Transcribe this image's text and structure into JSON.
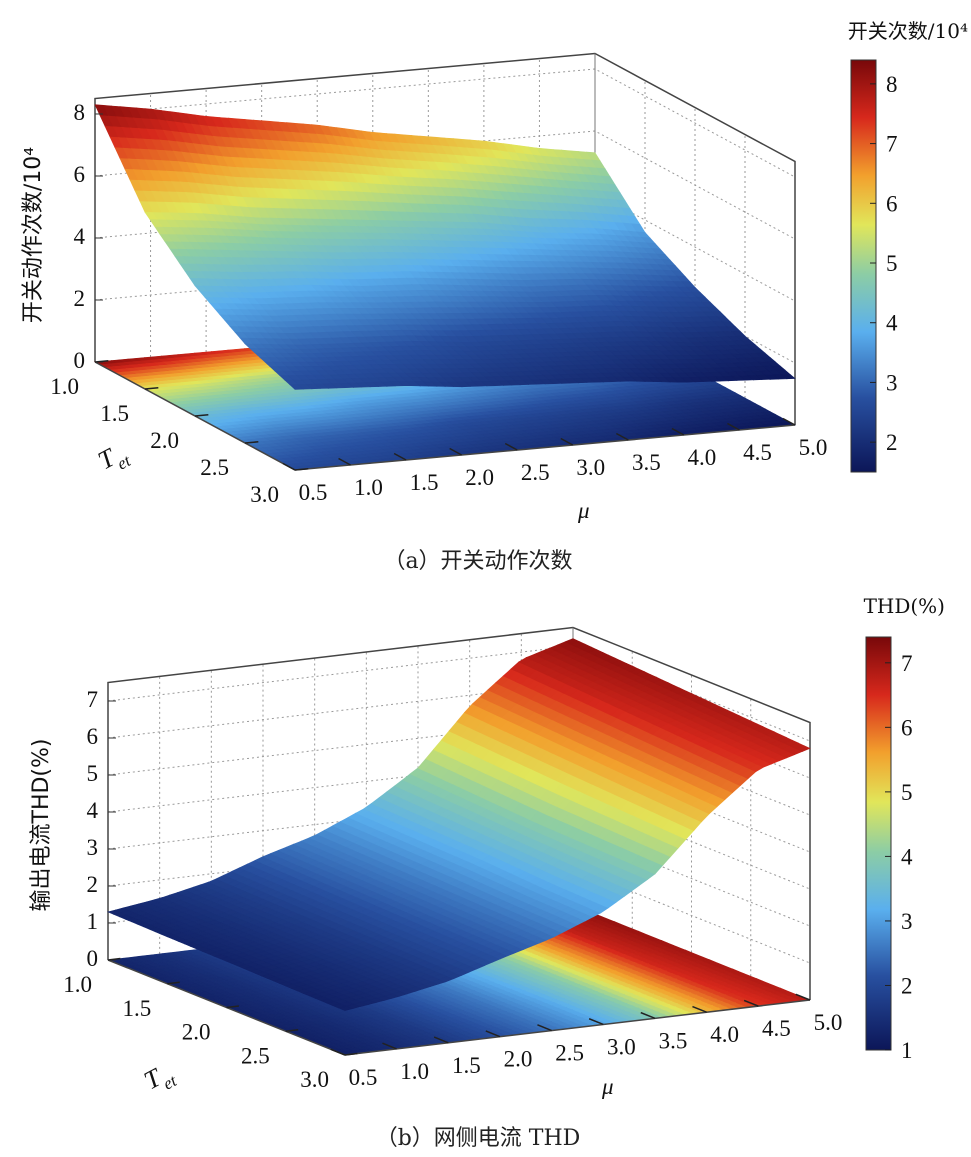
{
  "chart_data": [
    {
      "type": "surface3d",
      "caption": "（a）开关动作次数",
      "xlabel": "μ",
      "ylabel": {
        "main": "T",
        "sub": "et"
      },
      "zlabel": "开关动作次数/10⁴",
      "colorbar_title": "开关次数/10⁴",
      "colorbar_range": [
        1.5,
        8.4
      ],
      "colorbar_ticks": [
        "2",
        "3",
        "4",
        "5",
        "6",
        "7",
        "8"
      ],
      "mu": [
        0.5,
        1.0,
        1.5,
        2.0,
        2.5,
        3.0,
        3.5,
        4.0,
        4.5,
        5.0
      ],
      "mu_ticks": [
        "0.5",
        "1.0",
        "1.5",
        "2.0",
        "2.5",
        "3.0",
        "3.5",
        "4.0",
        "4.5",
        "5.0"
      ],
      "T": [
        1.0,
        1.5,
        2.0,
        2.5,
        3.0
      ],
      "T_ticks": [
        "1.0",
        "1.5",
        "2.0",
        "2.5",
        "3.0"
      ],
      "z_ticks": [
        "0",
        "2",
        "4",
        "6",
        "8"
      ],
      "zlim": [
        0,
        8.5
      ],
      "grid": true,
      "z": [
        [
          8.3,
          8.0,
          7.6,
          7.3,
          7.0,
          6.6,
          6.3,
          6.0,
          5.6,
          5.3
        ],
        [
          5.7,
          5.5,
          5.2,
          5.0,
          4.8,
          4.6,
          4.4,
          4.1,
          3.9,
          3.6
        ],
        [
          4.2,
          4.0,
          3.9,
          3.7,
          3.6,
          3.4,
          3.2,
          3.1,
          2.9,
          2.7
        ],
        [
          3.2,
          3.0,
          2.9,
          2.8,
          2.6,
          2.5,
          2.4,
          2.3,
          2.1,
          2.0
        ],
        [
          2.6,
          2.5,
          2.4,
          2.2,
          2.1,
          2.0,
          1.9,
          1.7,
          1.6,
          1.5
        ]
      ]
    },
    {
      "type": "surface3d",
      "caption": "（b）网侧电流 THD",
      "xlabel": "μ",
      "ylabel": {
        "main": "T",
        "sub": "et"
      },
      "zlabel": "输出电流THD(%)",
      "colorbar_title": "THD(%)",
      "colorbar_range": [
        1.0,
        7.4
      ],
      "colorbar_ticks": [
        "1",
        "2",
        "3",
        "4",
        "5",
        "6",
        "7"
      ],
      "mu": [
        0.5,
        1.0,
        1.5,
        2.0,
        2.5,
        3.0,
        3.5,
        4.0,
        4.5,
        5.0
      ],
      "mu_ticks": [
        "0.5",
        "1.0",
        "1.5",
        "2.0",
        "2.5",
        "3.0",
        "3.5",
        "4.0",
        "4.5",
        "5.0"
      ],
      "T": [
        1.0,
        1.5,
        2.0,
        2.5,
        3.0
      ],
      "T_ticks": [
        "1.0",
        "1.5",
        "2.0",
        "2.5",
        "3.0"
      ],
      "z_ticks": [
        "0",
        "1",
        "2",
        "3",
        "4",
        "5",
        "6",
        "7"
      ],
      "zlim": [
        0,
        7.5
      ],
      "grid": true,
      "z": [
        [
          1.3,
          1.5,
          1.8,
          2.3,
          2.7,
          3.3,
          4.2,
          5.7,
          6.8,
          7.2
        ],
        [
          1.27,
          1.47,
          1.76,
          2.25,
          2.65,
          3.25,
          4.1,
          5.6,
          6.7,
          7.1
        ],
        [
          1.25,
          1.45,
          1.73,
          2.2,
          2.6,
          3.2,
          4.0,
          5.5,
          6.6,
          7.0
        ],
        [
          1.22,
          1.42,
          1.7,
          2.15,
          2.55,
          3.1,
          3.95,
          5.4,
          6.5,
          6.9
        ],
        [
          1.2,
          1.4,
          1.67,
          2.1,
          2.5,
          3.05,
          3.9,
          5.3,
          6.4,
          6.8
        ]
      ]
    }
  ]
}
